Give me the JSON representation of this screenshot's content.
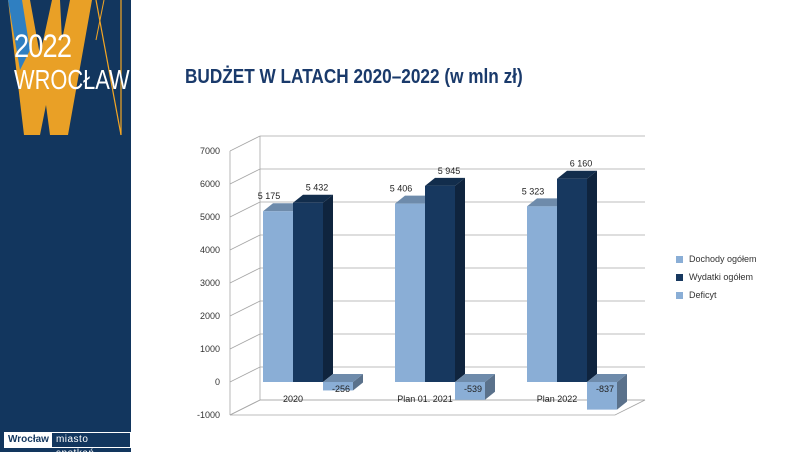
{
  "brand": {
    "year": "2022",
    "city": "WROCŁAW",
    "footer_name": "Wrocław",
    "footer_slogan": "miasto spotkań"
  },
  "slide": {
    "title": "BUDŻET W LATACH 2020–2022 (w mln zł)"
  },
  "colors": {
    "sidebar": "#12365e",
    "accent": "#f5a623",
    "dochody": "#8aaed6",
    "wydatki": "#17385f",
    "deficyt": "#8aaed6",
    "title": "#1a3a6b"
  },
  "chart_data": {
    "type": "bar",
    "categories": [
      "2020",
      "Plan 01. 2021",
      "Plan 2022"
    ],
    "series": [
      {
        "name": "Dochody ogółem",
        "values": [
          5175,
          5406,
          5323
        ],
        "labels": [
          "5 175",
          "5 406",
          "5 323"
        ]
      },
      {
        "name": "Wydatki ogółem",
        "values": [
          5432,
          5945,
          6160
        ],
        "labels": [
          "5 432",
          "5 945",
          "6 160"
        ]
      },
      {
        "name": "Deficyt",
        "values": [
          -256,
          -539,
          -837
        ],
        "labels": [
          "-256",
          "-539",
          "-837"
        ]
      }
    ],
    "yticks": [
      "7000",
      "6000",
      "5000",
      "4000",
      "3000",
      "2000",
      "1000",
      "0",
      "-1000"
    ],
    "ylim": [
      -1000,
      7000
    ],
    "grid": true,
    "legend_position": "right",
    "three_d": true
  }
}
